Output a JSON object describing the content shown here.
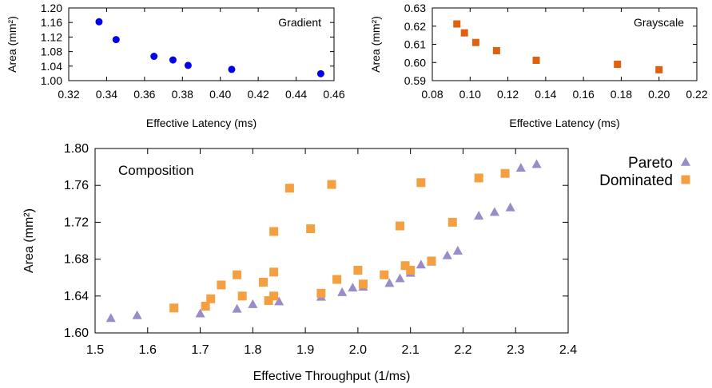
{
  "chart_data": [
    {
      "id": "gradient",
      "type": "scatter",
      "inset_label": "Gradient",
      "xlabel": "Effective Latency (ms)",
      "ylabel": "Area (mm²)",
      "xlim": [
        0.32,
        0.46
      ],
      "ylim": [
        1.0,
        1.2
      ],
      "xticks": [
        "0.32",
        "0.34",
        "0.36",
        "0.38",
        "0.40",
        "0.42",
        "0.44",
        "0.46"
      ],
      "yticks": [
        "1.00",
        "1.04",
        "1.08",
        "1.12",
        "1.16",
        "1.20"
      ],
      "marker": "circle",
      "color": "#0000ee",
      "points": [
        {
          "x": 0.336,
          "y": 1.162
        },
        {
          "x": 0.345,
          "y": 1.113
        },
        {
          "x": 0.365,
          "y": 1.067
        },
        {
          "x": 0.375,
          "y": 1.057
        },
        {
          "x": 0.383,
          "y": 1.042
        },
        {
          "x": 0.406,
          "y": 1.031
        },
        {
          "x": 0.453,
          "y": 1.019
        }
      ]
    },
    {
      "id": "grayscale",
      "type": "scatter",
      "inset_label": "Grayscale",
      "xlabel": "Effective Latency (ms)",
      "ylabel": "Area (mm²)",
      "xlim": [
        0.08,
        0.22
      ],
      "ylim": [
        0.59,
        0.63
      ],
      "xticks": [
        "0.08",
        "0.10",
        "0.12",
        "0.14",
        "0.16",
        "0.18",
        "0.20",
        "0.22"
      ],
      "yticks": [
        "0.59",
        "0.60",
        "0.61",
        "0.62",
        "0.63"
      ],
      "marker": "square",
      "color": "#e06010",
      "points": [
        {
          "x": 0.093,
          "y": 0.6212
        },
        {
          "x": 0.097,
          "y": 0.6163
        },
        {
          "x": 0.103,
          "y": 0.611
        },
        {
          "x": 0.114,
          "y": 0.6065
        },
        {
          "x": 0.135,
          "y": 0.6012
        },
        {
          "x": 0.178,
          "y": 0.599
        },
        {
          "x": 0.2,
          "y": 0.596
        }
      ]
    },
    {
      "id": "composition",
      "type": "scatter",
      "inset_label": "Composition",
      "xlabel": "Effective Throughput (1/ms)",
      "ylabel": "Area (mm²)",
      "xlim": [
        1.5,
        2.4
      ],
      "ylim": [
        1.6,
        1.8
      ],
      "xticks": [
        "1.5",
        "1.6",
        "1.7",
        "1.8",
        "1.9",
        "2.0",
        "2.1",
        "2.2",
        "2.3",
        "2.4"
      ],
      "yticks": [
        "1.60",
        "1.64",
        "1.68",
        "1.72",
        "1.76",
        "1.80"
      ],
      "legend_position": "outside-right-top",
      "series": [
        {
          "name": "Pareto",
          "marker": "triangle",
          "color": "#9a8cc8",
          "points": [
            {
              "x": 1.53,
              "y": 1.616
            },
            {
              "x": 1.58,
              "y": 1.619
            },
            {
              "x": 1.7,
              "y": 1.621
            },
            {
              "x": 1.77,
              "y": 1.626
            },
            {
              "x": 1.8,
              "y": 1.631
            },
            {
              "x": 1.85,
              "y": 1.634
            },
            {
              "x": 1.93,
              "y": 1.639
            },
            {
              "x": 1.97,
              "y": 1.644
            },
            {
              "x": 1.99,
              "y": 1.649
            },
            {
              "x": 2.01,
              "y": 1.65
            },
            {
              "x": 2.06,
              "y": 1.654
            },
            {
              "x": 2.08,
              "y": 1.659
            },
            {
              "x": 2.1,
              "y": 1.665
            },
            {
              "x": 2.12,
              "y": 1.674
            },
            {
              "x": 2.14,
              "y": 1.677
            },
            {
              "x": 2.17,
              "y": 1.684
            },
            {
              "x": 2.19,
              "y": 1.689
            },
            {
              "x": 2.23,
              "y": 1.727
            },
            {
              "x": 2.26,
              "y": 1.731
            },
            {
              "x": 2.29,
              "y": 1.736
            },
            {
              "x": 2.31,
              "y": 1.779
            },
            {
              "x": 2.34,
              "y": 1.783
            }
          ]
        },
        {
          "name": "Dominated",
          "marker": "square",
          "color": "#f4a040",
          "points": [
            {
              "x": 1.65,
              "y": 1.627
            },
            {
              "x": 1.71,
              "y": 1.629
            },
            {
              "x": 1.72,
              "y": 1.637
            },
            {
              "x": 1.74,
              "y": 1.652
            },
            {
              "x": 1.77,
              "y": 1.663
            },
            {
              "x": 1.78,
              "y": 1.64
            },
            {
              "x": 1.82,
              "y": 1.655
            },
            {
              "x": 1.83,
              "y": 1.635
            },
            {
              "x": 1.84,
              "y": 1.64
            },
            {
              "x": 1.84,
              "y": 1.666
            },
            {
              "x": 1.84,
              "y": 1.71
            },
            {
              "x": 1.87,
              "y": 1.757
            },
            {
              "x": 1.91,
              "y": 1.713
            },
            {
              "x": 1.93,
              "y": 1.643
            },
            {
              "x": 1.95,
              "y": 1.761
            },
            {
              "x": 1.96,
              "y": 1.658
            },
            {
              "x": 2.0,
              "y": 1.668
            },
            {
              "x": 2.01,
              "y": 1.653
            },
            {
              "x": 2.05,
              "y": 1.663
            },
            {
              "x": 2.08,
              "y": 1.716
            },
            {
              "x": 2.09,
              "y": 1.673
            },
            {
              "x": 2.1,
              "y": 1.668
            },
            {
              "x": 2.12,
              "y": 1.763
            },
            {
              "x": 2.14,
              "y": 1.678
            },
            {
              "x": 2.18,
              "y": 1.72
            },
            {
              "x": 2.23,
              "y": 1.768
            },
            {
              "x": 2.28,
              "y": 1.773
            }
          ]
        }
      ]
    }
  ]
}
